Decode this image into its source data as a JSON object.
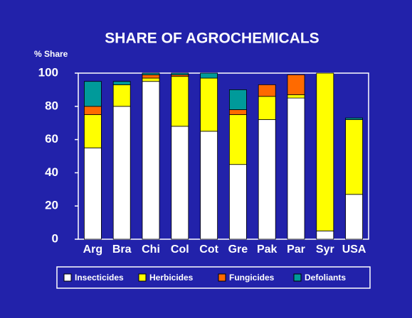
{
  "chart_data": {
    "type": "stacked_bar",
    "title": "SHARE OF AGROCHEMICALS",
    "y_label": "% Share",
    "categories": [
      "Arg",
      "Bra",
      "Chi",
      "Col",
      "Cot",
      "Gre",
      "Pak",
      "Par",
      "Syr",
      "USA"
    ],
    "series": [
      {
        "name": "Insecticides",
        "color": "#ffffff",
        "values": [
          55,
          80,
          95,
          68,
          65,
          45,
          72,
          85,
          5,
          27
        ]
      },
      {
        "name": "Herbicides",
        "color": "#ffff00",
        "values": [
          20,
          13,
          2,
          30,
          32,
          30,
          14,
          2,
          95,
          45
        ]
      },
      {
        "name": "Fungicides",
        "color": "#ff6a00",
        "values": [
          5,
          0,
          2,
          1,
          0,
          3,
          7,
          12,
          0,
          0
        ]
      },
      {
        "name": "Defoliants",
        "color": "#009a9a",
        "values": [
          15,
          2,
          1,
          1,
          3,
          12,
          0,
          0,
          0,
          1
        ]
      }
    ],
    "ylim": [
      0,
      100
    ],
    "yticks": [
      0,
      20,
      40,
      60,
      80,
      100
    ],
    "grid": false,
    "legend": "bottom"
  }
}
